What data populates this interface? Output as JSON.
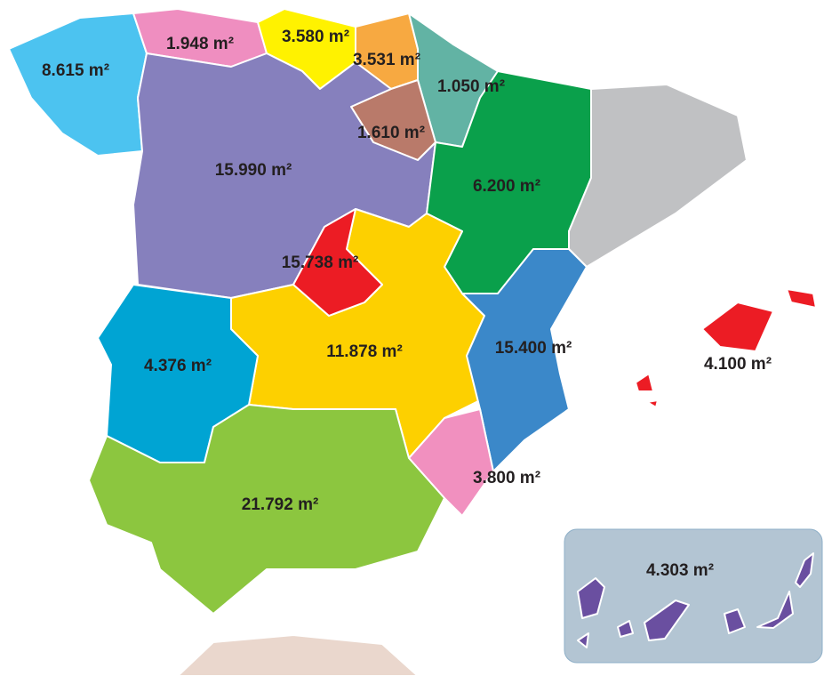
{
  "regions": [
    {
      "label": "8.615 m²"
    },
    {
      "label": "1.948 m²"
    },
    {
      "label": "3.580 m²"
    },
    {
      "label": "3.531 m²"
    },
    {
      "label": "1.050 m²"
    },
    {
      "label": "1.610 m²"
    },
    {
      "label": "15.990 m²"
    },
    {
      "label": "6.200 m²"
    },
    {
      "label": "15.738 m²"
    },
    {
      "label": "4.376 m²"
    },
    {
      "label": "11.878 m²"
    },
    {
      "label": "15.400 m²"
    },
    {
      "label": "4.100 m²"
    },
    {
      "label": "3.800 m²"
    },
    {
      "label": "21.792 m²"
    },
    {
      "label": "4.303 m²"
    }
  ]
}
